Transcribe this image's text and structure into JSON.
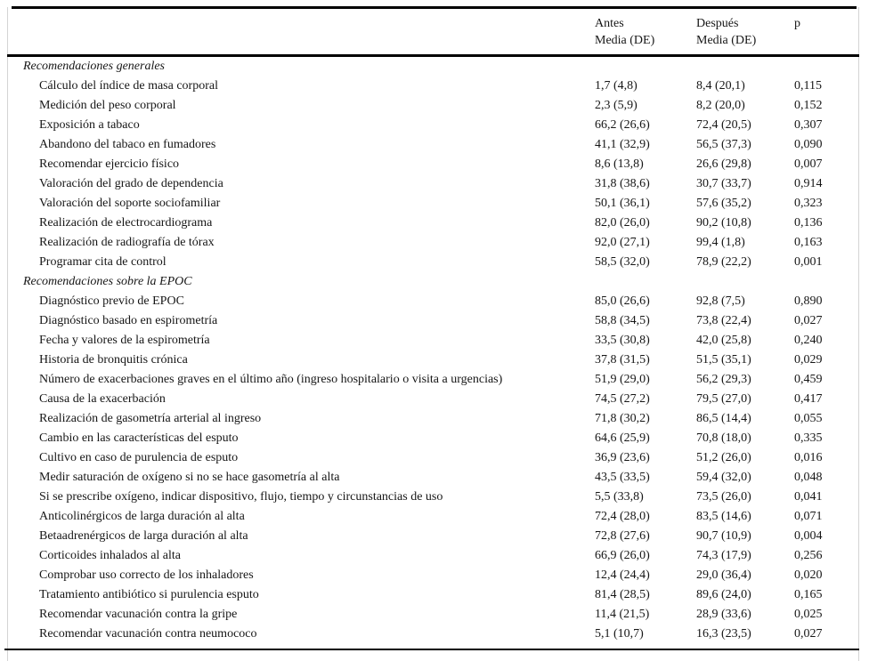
{
  "header": {
    "antes_line1": "Antes",
    "antes_line2": "Media (DE)",
    "despues_line1": "Después",
    "despues_line2": "Media (DE)",
    "p_label": "p"
  },
  "table": {
    "sections": [
      {
        "title": "Recomendaciones generales",
        "rows": [
          {
            "label": "Cálculo del índice de masa corporal",
            "antes": "1,7 (4,8)",
            "despues": "8,4 (20,1)",
            "p": "0,115"
          },
          {
            "label": "Medición del peso corporal",
            "antes": "2,3 (5,9)",
            "despues": "8,2 (20,0)",
            "p": "0,152"
          },
          {
            "label": "Exposición a tabaco",
            "antes": "66,2 (26,6)",
            "despues": "72,4 (20,5)",
            "p": "0,307"
          },
          {
            "label": "Abandono del tabaco en fumadores",
            "antes": "41,1 (32,9)",
            "despues": "56,5 (37,3)",
            "p": "0,090"
          },
          {
            "label": "Recomendar ejercicio físico",
            "antes": "8,6 (13,8)",
            "despues": "26,6 (29,8)",
            "p": "0,007"
          },
          {
            "label": "Valoración del grado de dependencia",
            "antes": "31,8 (38,6)",
            "despues": "30,7 (33,7)",
            "p": "0,914"
          },
          {
            "label": "Valoración del soporte sociofamiliar",
            "antes": "50,1 (36,1)",
            "despues": "57,6 (35,2)",
            "p": "0,323"
          },
          {
            "label": "Realización de electrocardiograma",
            "antes": "82,0 (26,0)",
            "despues": "90,2 (10,8)",
            "p": "0,136"
          },
          {
            "label": "Realización de radiografía de tórax",
            "antes": "92,0 (27,1)",
            "despues": "99,4 (1,8)",
            "p": "0,163"
          },
          {
            "label": "Programar cita de control",
            "antes": "58,5 (32,0)",
            "despues": "78,9 (22,2)",
            "p": "0,001"
          }
        ]
      },
      {
        "title": "Recomendaciones sobre la EPOC",
        "rows": [
          {
            "label": "Diagnóstico previo de EPOC",
            "antes": "85,0 (26,6)",
            "despues": "92,8 (7,5)",
            "p": "0,890"
          },
          {
            "label": "Diagnóstico basado en espirometría",
            "antes": "58,8 (34,5)",
            "despues": "73,8 (22,4)",
            "p": "0,027"
          },
          {
            "label": "Fecha y valores de la espirometría",
            "antes": "33,5 (30,8)",
            "despues": "42,0 (25,8)",
            "p": "0,240"
          },
          {
            "label": "Historia de bronquitis crónica",
            "antes": "37,8 (31,5)",
            "despues": "51,5 (35,1)",
            "p": "0,029"
          },
          {
            "label": "Número de exacerbaciones graves en el último año (ingreso hospitalario o visita a urgencias)",
            "antes": "51,9 (29,0)",
            "despues": "56,2 (29,3)",
            "p": "0,459"
          },
          {
            "label": "Causa de la exacerbación",
            "antes": "74,5 (27,2)",
            "despues": "79,5 (27,0)",
            "p": "0,417"
          },
          {
            "label": "Realización de gasometría arterial al ingreso",
            "antes": "71,8 (30,2)",
            "despues": "86,5 (14,4)",
            "p": "0,055"
          },
          {
            "label": "Cambio en las características del esputo",
            "antes": "64,6 (25,9)",
            "despues": "70,8 (18,0)",
            "p": "0,335"
          },
          {
            "label": "Cultivo en caso de purulencia de esputo",
            "antes": "36,9 (23,6)",
            "despues": "51,2 (26,0)",
            "p": "0,016"
          },
          {
            "label": "Medir saturación de oxígeno si no se hace gasometría al alta",
            "antes": "43,5 (33,5)",
            "despues": "59,4 (32,0)",
            "p": "0,048"
          },
          {
            "label": "Si se prescribe oxígeno, indicar dispositivo, flujo, tiempo y circunstancias de uso",
            "antes": "5,5 (33,8)",
            "despues": "73,5 (26,0)",
            "p": "0,041"
          },
          {
            "label": "Anticolinérgicos de larga duración al alta",
            "antes": "72,4 (28,0)",
            "despues": "83,5 (14,6)",
            "p": "0,071"
          },
          {
            "label": "Betaadrenérgicos de larga duración al alta",
            "antes": "72,8 (27,6)",
            "despues": "90,7 (10,9)",
            "p": "0,004"
          },
          {
            "label": "Corticoides inhalados al alta",
            "antes": "66,9 (26,0)",
            "despues": "74,3 (17,9)",
            "p": "0,256"
          },
          {
            "label": "Comprobar uso correcto de los inhaladores",
            "antes": "12,4 (24,4)",
            "despues": "29,0 (36,4)",
            "p": "0,020"
          },
          {
            "label": "Tratamiento antibiótico si purulencia esputo",
            "antes": "81,4 (28,5)",
            "despues": "89,6 (24,0)",
            "p": "0,165"
          },
          {
            "label": "Recomendar vacunación contra la gripe",
            "antes": "11,4 (21,5)",
            "despues": "28,9 (33,6)",
            "p": "0,025"
          },
          {
            "label": "Recomendar vacunación contra neumococo",
            "antes": "5,1 (10,7)",
            "despues": "16,3 (23,5)",
            "p": "0,027"
          }
        ]
      }
    ]
  }
}
